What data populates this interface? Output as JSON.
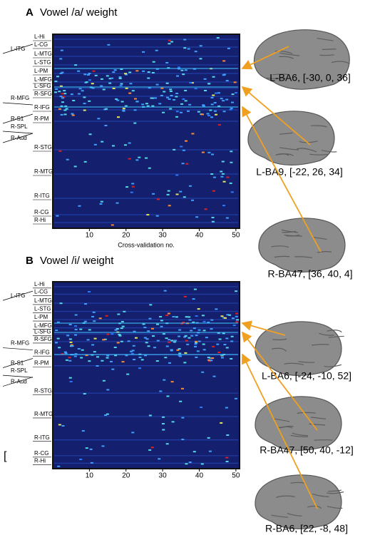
{
  "panels": [
    {
      "letter": "A",
      "title": "Vowel /a/ weight",
      "regions": [
        "L-Hi",
        "L-CG",
        "L-MTG",
        "L-STG",
        "L-PM",
        "L-MFG",
        "L-SFG",
        "R-SFG",
        "R-IFG",
        "R-PM",
        "R-STG",
        "R-MTG",
        "R-ITG",
        "R-CG",
        "R-Hi"
      ],
      "outer_regions": [
        "L-ITG",
        "R-MFG",
        "R-S1",
        "R-SPL",
        "R-Aud"
      ],
      "xlim": [
        0,
        51
      ],
      "xticks": [
        10,
        20,
        30,
        40,
        50
      ],
      "xlabel": "Cross-validation no.",
      "brains": [
        {
          "label": "L-BA6, [-30, 0, 36]"
        },
        {
          "label": "L-BA9, [-22, 26, 34]"
        },
        {
          "label": "R-BA47, [36, 40, 4]"
        }
      ]
    },
    {
      "letter": "B",
      "title": "Vowel /i/ weight",
      "regions": [
        "L-Hi",
        "L-CG",
        "L-MTG",
        "L-STG",
        "L-PM",
        "L-MFG",
        "L-SFG",
        "R-SFG",
        "R-IFG",
        "R-PM",
        "R-STG",
        "R-MTG",
        "R-ITG",
        "R-CG",
        "R-Hi"
      ],
      "outer_regions": [
        "L-ITG",
        "R-MFG",
        "R-S1",
        "R-SPL",
        "R-Aud"
      ],
      "xlim": [
        0,
        51
      ],
      "xticks": [
        10,
        20,
        30,
        40,
        50
      ],
      "brains": [
        {
          "label": "L-BA6, [-24, -10, 52]"
        },
        {
          "label": "R-BA47, [50, 40, -12]"
        },
        {
          "label": "R-BA6, [22, -8, 48]"
        }
      ]
    }
  ],
  "stray_mark": "["
}
